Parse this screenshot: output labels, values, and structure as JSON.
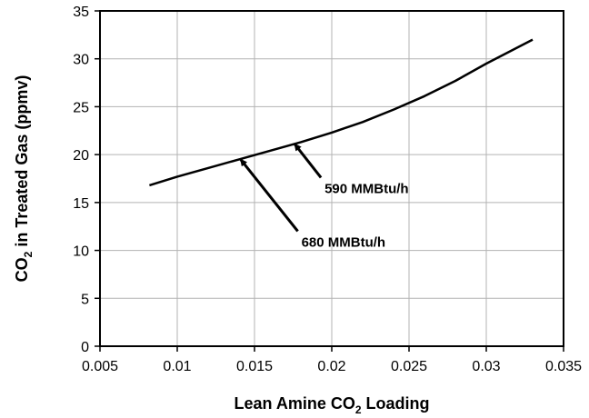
{
  "chart_data": {
    "type": "line",
    "xlabel": {
      "main": "Lean Amine CO",
      "sub": "2",
      "tail": " Loading"
    },
    "ylabel": {
      "main": "CO",
      "sub": "2",
      "tail": " in Treated Gas (ppmv)"
    },
    "xlim": [
      0.005,
      0.035
    ],
    "ylim": [
      0,
      35
    ],
    "xticks": [
      "0.005",
      "0.01",
      "0.015",
      "0.02",
      "0.025",
      "0.03",
      "0.035"
    ],
    "yticks": [
      "0",
      "5",
      "10",
      "15",
      "20",
      "25",
      "30",
      "35"
    ],
    "grid": true,
    "series": [
      {
        "x": [
          0.0082,
          0.01,
          0.012,
          0.014,
          0.016,
          0.018,
          0.02,
          0.022,
          0.024,
          0.026,
          0.028,
          0.03,
          0.033
        ],
        "y": [
          16.8,
          17.7,
          18.6,
          19.5,
          20.4,
          21.3,
          22.3,
          23.4,
          24.7,
          26.1,
          27.7,
          29.5,
          32.0
        ]
      }
    ],
    "annotations": [
      {
        "text": "680 MMBtu/h",
        "point": [
          0.0141,
          19.5
        ],
        "from": [
          0.0178,
          12.0
        ]
      },
      {
        "text": "590 MMBtu/h",
        "point": [
          0.0176,
          21.1
        ],
        "from": [
          0.0193,
          17.6
        ]
      }
    ],
    "line_color": "#000000",
    "grid_color": "#b3b3b3"
  }
}
